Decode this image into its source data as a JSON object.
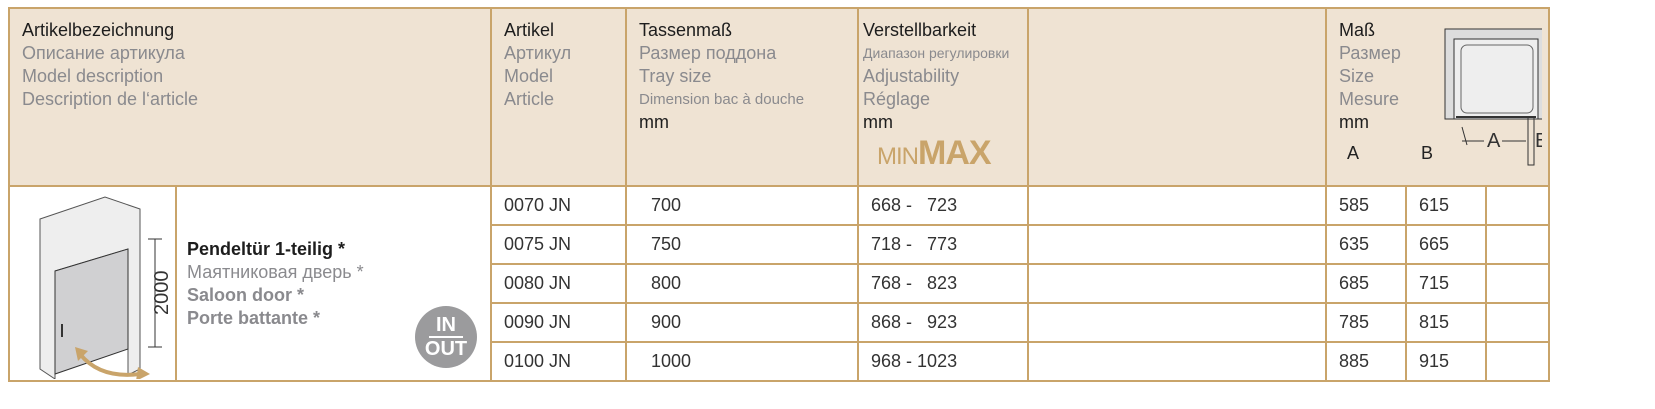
{
  "header": {
    "description": [
      "Artikelbezeichnung",
      "Описание артикула",
      "Model description",
      "Description de l‘article"
    ],
    "article": [
      "Artikel",
      "Артикул",
      "Model",
      "Article"
    ],
    "tray": [
      "Tassenmaß",
      "Размер поддона",
      "Tray size",
      "Dimension bac à douche",
      "mm"
    ],
    "adjust": [
      "Verstellbarkeit",
      "Диапазон регулировки",
      "Adjustability",
      "Réglage",
      "mm"
    ],
    "minmax": {
      "min": "MIN",
      "max": "MAX"
    },
    "size": [
      "Maß",
      "Размер",
      "Size",
      "Mesure",
      "mm"
    ],
    "size_cols": [
      "A",
      "B"
    ],
    "diagram_labels": {
      "a": "A",
      "b": "B"
    }
  },
  "product": {
    "names": [
      "Pendeltür 1-teilig *",
      "Маятниковая дверь *",
      "Saloon door *",
      "Porte battante *"
    ],
    "height": "2000",
    "badge": {
      "top": "IN",
      "bottom": "OUT"
    }
  },
  "rows": [
    {
      "article": "0070 JN",
      "tray": "700",
      "adjust": "668 -   723",
      "a": "585",
      "b": "615"
    },
    {
      "article": "0075 JN",
      "tray": "750",
      "adjust": "718 -   773",
      "a": "635",
      "b": "665"
    },
    {
      "article": "0080 JN",
      "tray": "800",
      "adjust": "768 -   823",
      "a": "685",
      "b": "715"
    },
    {
      "article": "0090 JN",
      "tray": "900",
      "adjust": "868 -   923",
      "a": "785",
      "b": "815"
    },
    {
      "article": "0100 JN",
      "tray": "1000",
      "adjust": "968 - 1023",
      "a": "885",
      "b": "915"
    }
  ],
  "colors": {
    "border": "#c9a46a",
    "header_bg": "#efe3d3",
    "accent": "#c9a46a"
  }
}
